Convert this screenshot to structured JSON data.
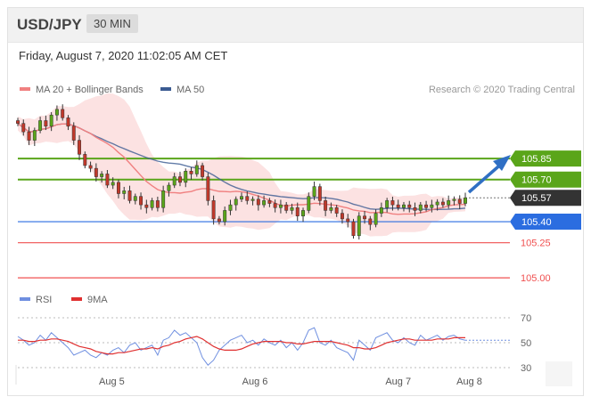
{
  "header": {
    "pair": "USD/JPY",
    "timeframe": "30 MIN"
  },
  "datetime": "Friday, August 7, 2020 11:02:05 AM CET",
  "legend": {
    "ma20": "MA 20 + Bollinger Bands",
    "ma50": "MA 50",
    "credit": "Research © 2020 Trading Central"
  },
  "rsi_legend": {
    "rsi": "RSI",
    "ma9": "9MA"
  },
  "colors": {
    "ma20": "#f08080",
    "ma50": "#3b5b92",
    "band": "#fbd5d5",
    "support": "#2b6de0",
    "resistance": "#5aa51a",
    "red_level": "#f05050",
    "current": "#333333",
    "arrow": "#2f6fc4",
    "rsi": "#6f8fe0",
    "rsi_ma": "#e03030"
  },
  "chart_data": [
    {
      "type": "candlestick",
      "x_ticks": [
        "Aug 5",
        "Aug 6",
        "Aug 7",
        "Aug 8"
      ],
      "levels": [
        {
          "value": 105.85,
          "label": "105.85",
          "kind": "resistance"
        },
        {
          "value": 105.7,
          "label": "105.70",
          "kind": "resistance"
        },
        {
          "value": 105.57,
          "label": "105.57",
          "kind": "current"
        },
        {
          "value": 105.4,
          "label": "105.40",
          "kind": "support"
        },
        {
          "value": 105.25,
          "label": "105.25",
          "kind": "minor"
        },
        {
          "value": 105.0,
          "label": "105.00",
          "kind": "minor"
        }
      ],
      "ylim": [
        104.95,
        106.25
      ],
      "close": [
        106.1,
        106.04,
        105.98,
        106.05,
        106.12,
        106.08,
        106.16,
        106.2,
        106.14,
        106.08,
        105.98,
        105.88,
        105.8,
        105.78,
        105.72,
        105.74,
        105.66,
        105.68,
        105.6,
        105.62,
        105.55,
        105.58,
        105.52,
        105.5,
        105.55,
        105.5,
        105.62,
        105.66,
        105.72,
        105.68,
        105.76,
        105.74,
        105.8,
        105.72,
        105.55,
        105.42,
        105.4,
        105.48,
        105.52,
        105.56,
        105.58,
        105.55,
        105.56,
        105.52,
        105.55,
        105.53,
        105.5,
        105.52,
        105.48,
        105.5,
        105.44,
        105.48,
        105.58,
        105.65,
        105.55,
        105.48,
        105.5,
        105.46,
        105.42,
        105.4,
        105.3,
        105.44,
        105.42,
        105.38,
        105.46,
        105.5,
        105.55,
        105.52,
        105.5,
        105.52,
        105.5,
        105.48,
        105.52,
        105.5,
        105.52,
        105.54,
        105.52,
        105.55,
        105.56,
        105.53,
        105.57
      ]
    },
    {
      "type": "line",
      "name": "RSI",
      "y_ticks": [
        70,
        50,
        30
      ],
      "ylim": [
        25,
        75
      ],
      "rsi": [
        55,
        52,
        48,
        50,
        56,
        52,
        58,
        54,
        50,
        46,
        40,
        42,
        44,
        40,
        38,
        42,
        40,
        44,
        46,
        42,
        48,
        50,
        44,
        46,
        48,
        40,
        52,
        54,
        60,
        56,
        58,
        54,
        50,
        38,
        32,
        36,
        44,
        48,
        52,
        54,
        56,
        50,
        52,
        48,
        53,
        50,
        48,
        52,
        46,
        50,
        44,
        50,
        60,
        62,
        50,
        48,
        52,
        46,
        44,
        42,
        36,
        52,
        48,
        44,
        54,
        56,
        58,
        52,
        50,
        54,
        50,
        48,
        56,
        52,
        54,
        56,
        52,
        55,
        56,
        53,
        52
      ],
      "ma9": [
        52,
        52,
        51,
        51,
        52,
        52,
        53,
        53,
        52,
        51,
        49,
        47,
        46,
        45,
        43,
        42,
        41,
        41,
        42,
        42,
        43,
        44,
        45,
        45,
        46,
        45,
        47,
        48,
        50,
        51,
        53,
        54,
        55,
        53,
        50,
        47,
        45,
        44,
        44,
        44,
        45,
        47,
        49,
        50,
        51,
        51,
        51,
        51,
        50,
        50,
        49,
        49,
        50,
        51,
        51,
        51,
        51,
        50,
        49,
        48,
        46,
        46,
        45,
        45,
        46,
        48,
        50,
        51,
        52,
        53,
        53,
        52,
        52,
        52,
        52,
        53,
        53,
        53,
        54,
        54,
        54
      ]
    }
  ]
}
